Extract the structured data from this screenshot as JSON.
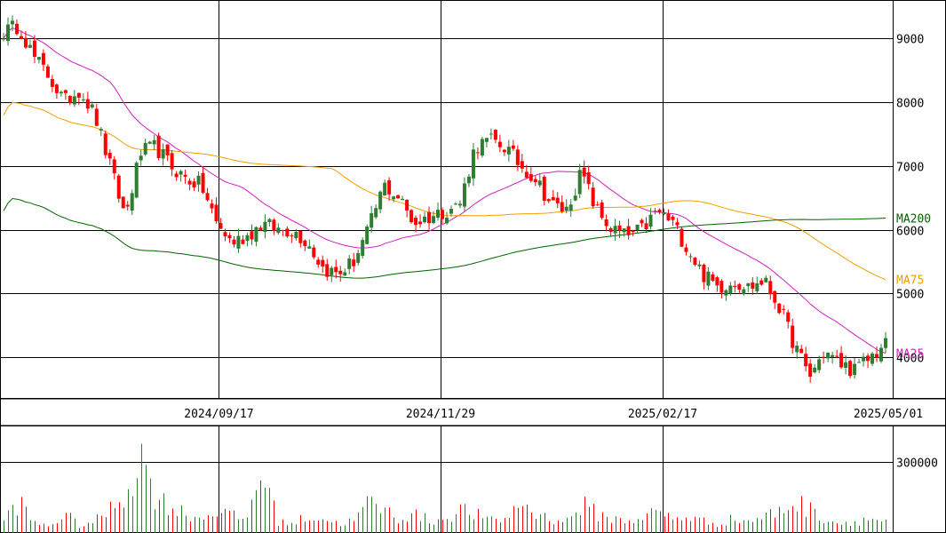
{
  "chart_data": [
    {
      "type": "candlestick",
      "title": "",
      "x_tick_labels": [
        "2024/09/17",
        "2024/11/29",
        "2025/02/17",
        "2025/05/01"
      ],
      "y_tick_labels": [
        "9000",
        "8000",
        "7000",
        "6000",
        "5000",
        "4000"
      ],
      "ylim": [
        3350,
        9600
      ],
      "grid": true,
      "colors": {
        "up": "#2e7d32",
        "down": "#ff0000",
        "ma25": "#d020c0",
        "ma75": "#f0a000",
        "ma200": "#006400"
      },
      "moving_averages": [
        {
          "name": "MA200",
          "color": "#006400"
        },
        {
          "name": "MA75",
          "color": "#f0a000"
        },
        {
          "name": "MA25",
          "color": "#d020c0"
        }
      ],
      "approx_close_path": [
        9100,
        9200,
        8700,
        8400,
        8000,
        8200,
        7800,
        7000,
        6200,
        7200,
        7300,
        7000,
        6800,
        6700,
        6100,
        5800,
        5900,
        6100,
        6000,
        6000,
        5800,
        5400,
        5300,
        5500,
        6000,
        6700,
        6500,
        6100,
        6200,
        6300,
        6400,
        7300,
        7400,
        7300,
        7000,
        6800,
        6400,
        6300,
        6900,
        6300,
        6000,
        5900,
        6000,
        6300,
        6100,
        5700,
        5300,
        5100,
        5200,
        5100,
        5200,
        4800,
        4200,
        3700,
        4100,
        3900,
        3800,
        4000,
        4200
      ]
    },
    {
      "type": "bar",
      "title": "",
      "y_tick_labels": [
        "300000"
      ],
      "ylim": [
        0,
        450000
      ],
      "grid": true,
      "approx_volume_path": [
        60000,
        130000,
        40000,
        30000,
        80000,
        30000,
        50000,
        100000,
        170000,
        320000,
        150000,
        110000,
        80000,
        60000,
        100000,
        70000,
        60000,
        280000,
        50000,
        40000,
        70000,
        60000,
        40000,
        50000,
        130000,
        100000,
        60000,
        80000,
        50000,
        60000,
        100000,
        80000,
        50000,
        60000,
        130000,
        80000,
        60000,
        50000,
        120000,
        80000,
        60000,
        50000,
        70000,
        90000,
        60000,
        70000,
        50000,
        40000,
        60000,
        50000,
        70000,
        90000,
        130000,
        100000,
        60000,
        40000,
        50000,
        60000,
        50000
      ]
    }
  ]
}
